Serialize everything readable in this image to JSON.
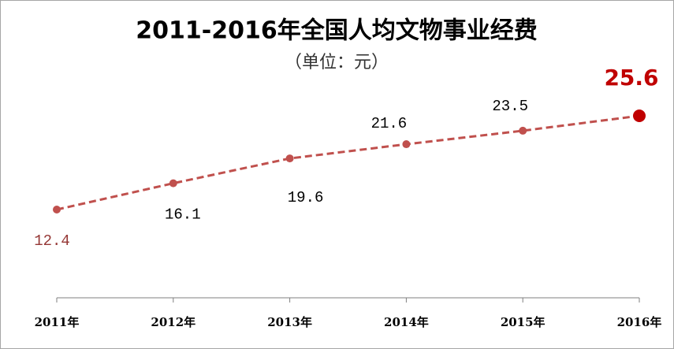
{
  "chart_data": {
    "type": "line",
    "title": "2011-2016年全国人均文物事业经费",
    "subtitle": "（单位：元）",
    "categories": [
      "2011年",
      "2012年",
      "2013年",
      "2014年",
      "2015年",
      "2016年"
    ],
    "values": [
      12.4,
      16.1,
      19.6,
      21.6,
      23.5,
      25.6
    ],
    "color": "#c0504d",
    "highlight_color": "#c00000"
  }
}
